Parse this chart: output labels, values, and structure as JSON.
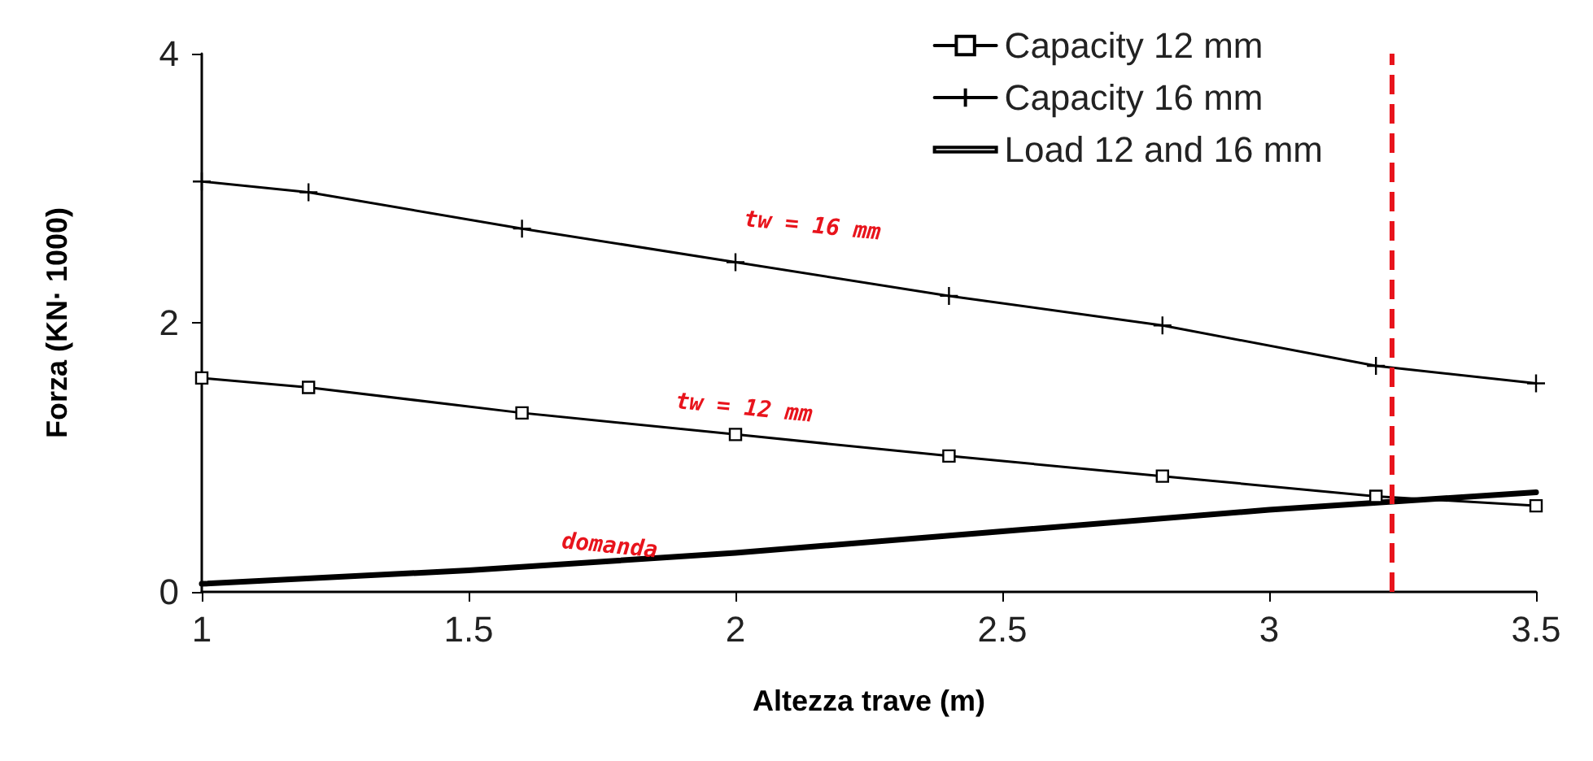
{
  "chart_data": {
    "type": "line",
    "xlabel": "Altezza trave (m)",
    "ylabel": "Forza (KN· 1000)",
    "xlim": [
      1,
      3.5
    ],
    "ylim": [
      0,
      4
    ],
    "xticks": [
      1,
      1.5,
      2,
      2.5,
      3,
      3.5
    ],
    "yticks": [
      0,
      2,
      4
    ],
    "grid": false,
    "legend": "top right",
    "line_style": "solid",
    "series": [
      {
        "name": "Capacity 12 mm",
        "color": "#000000",
        "marker": "square",
        "x": [
          1,
          1.2,
          1.6,
          2,
          2.4,
          2.8,
          3.2,
          3.5
        ],
        "values": [
          1.59,
          1.52,
          1.33,
          1.17,
          1.01,
          0.86,
          0.71,
          0.64
        ]
      },
      {
        "name": "Capacity 16 mm",
        "color": "#000000",
        "marker": "cross",
        "x": [
          1,
          1.2,
          1.6,
          2,
          2.4,
          2.8,
          3.2,
          3.5
        ],
        "values": [
          3.05,
          2.97,
          2.7,
          2.45,
          2.2,
          1.98,
          1.68,
          1.55
        ]
      },
      {
        "name": "Load 12 and 16 mm",
        "color": "#000000",
        "marker": "none",
        "x": [
          1,
          1.5,
          2,
          2.5,
          3,
          3.5
        ],
        "values": [
          0.06,
          0.16,
          0.29,
          0.45,
          0.61,
          0.74
        ]
      }
    ],
    "ref_lines": [
      {
        "axis": "x",
        "value": 3.235,
        "label": null,
        "color": "#e8141c",
        "line_style": "dashed"
      }
    ],
    "annotations": [
      "tw = 16 mm",
      "tw = 12 mm",
      "domanda"
    ]
  }
}
